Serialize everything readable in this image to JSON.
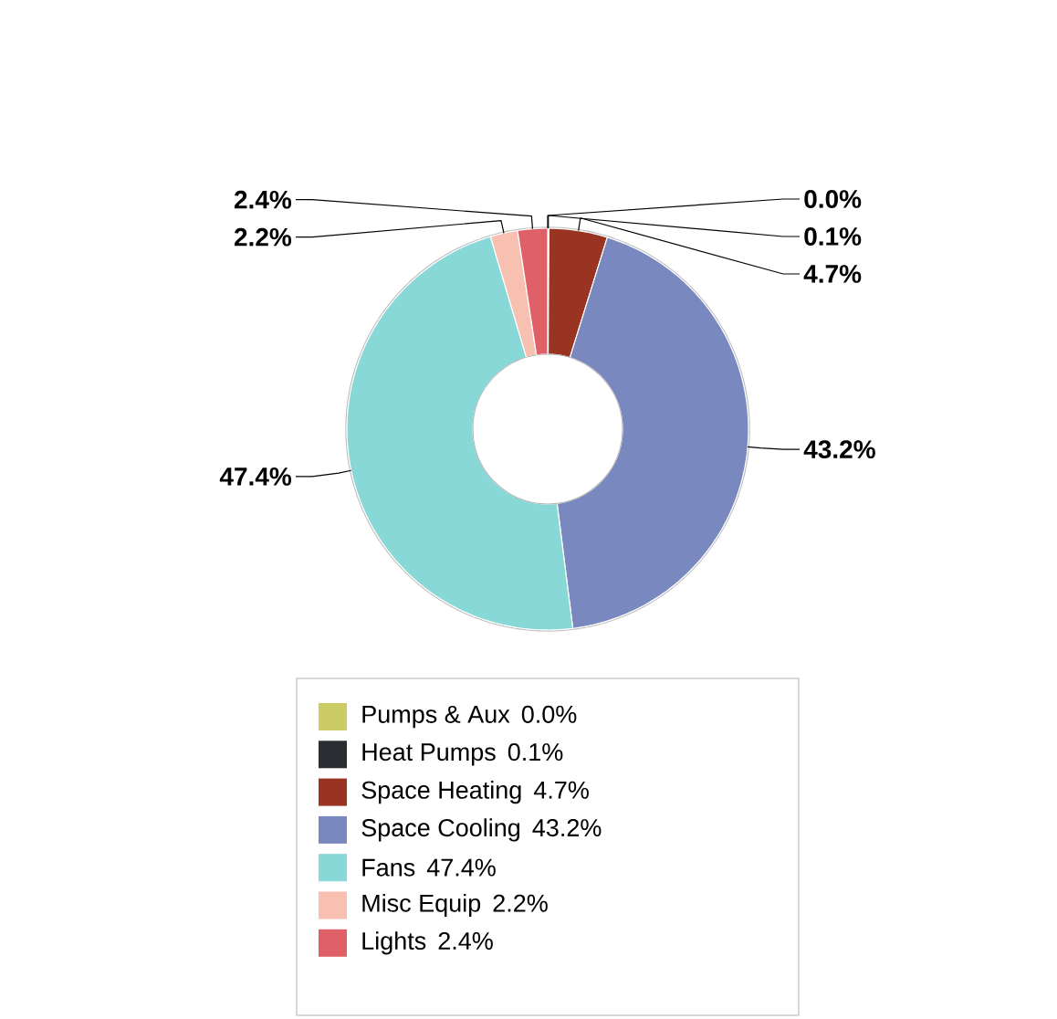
{
  "chart_data": {
    "type": "donut",
    "legend": "bottom",
    "categories": [
      "Pumps & Aux",
      "Heat Pumps",
      "Space Heating",
      "Space Cooling",
      "Fans",
      "Misc Equip",
      "Lights"
    ],
    "values": [
      0.0,
      0.1,
      4.7,
      43.2,
      47.4,
      2.2,
      2.4
    ],
    "value_labels": [
      "0.0%",
      "0.1%",
      "4.7%",
      "43.2%",
      "47.4%",
      "2.2%",
      "2.4%"
    ],
    "colors": [
      "#cccc66",
      "#2a2e33",
      "#993322",
      "#7a88c0",
      "#88d8d8",
      "#f8c0b0",
      "#e06068"
    ]
  }
}
